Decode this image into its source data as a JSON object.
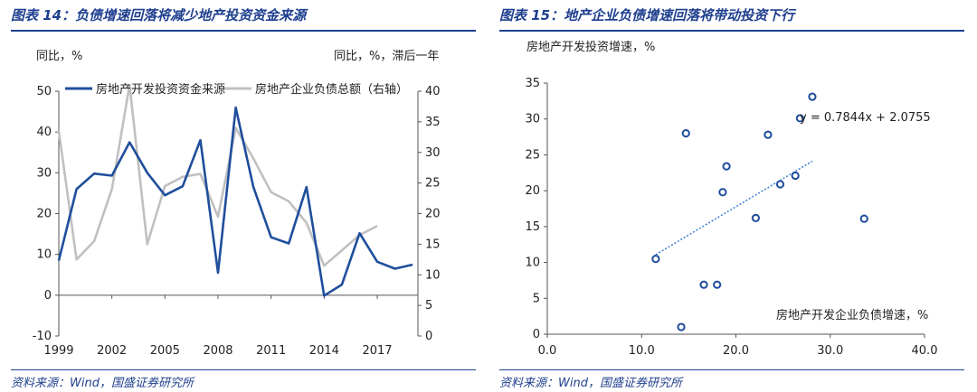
{
  "footer": "资料来源：Wind，国盛证券研究所",
  "colors": {
    "accent": "#1f3f8f",
    "series_navy": "#1f4e9c",
    "series_grey": "#c0c0c0",
    "trend": "#3b7fd0"
  },
  "chart_data": [
    {
      "type": "line",
      "title": "图表 14：负债增速回落将减少地产投资资金来源",
      "ylabel": "同比，%",
      "y2label": "同比，%，滞后一年",
      "x_tick_labels": [
        "1999",
        "2002",
        "2005",
        "2008",
        "2011",
        "2014",
        "2017"
      ],
      "ylim": [
        -10,
        50
      ],
      "yticks": [
        -10,
        0,
        10,
        20,
        30,
        40,
        50
      ],
      "y2lim": [
        0,
        40
      ],
      "y2ticks": [
        0,
        5,
        10,
        15,
        20,
        25,
        30,
        35,
        40
      ],
      "xlim": [
        1999,
        2019.3
      ],
      "legend_position": "top",
      "series": [
        {
          "name": "房地产开发投资资金来源",
          "axis": "left",
          "color": "#1f4e9c",
          "x": [
            1999,
            2000,
            2001,
            2002,
            2003,
            2004,
            2005,
            2006,
            2007,
            2008,
            2009,
            2010,
            2011,
            2012,
            2013,
            2014,
            2015,
            2016,
            2017,
            2018,
            2019
          ],
          "values": [
            8.5,
            26,
            29.8,
            29.3,
            37.5,
            30,
            24.5,
            26.7,
            38,
            5.5,
            46,
            26.5,
            14.2,
            12.7,
            26.5,
            -0.1,
            2.6,
            15.2,
            8.2,
            6.5,
            7.5
          ]
        },
        {
          "name": "房地产企业负债总额（右轴）",
          "axis": "right",
          "color": "#c0c0c0",
          "x": [
            1999,
            2000,
            2001,
            2002,
            2003,
            2004,
            2005,
            2006,
            2007,
            2008,
            2009,
            2010,
            2011,
            2012,
            2013,
            2014,
            2015,
            2016,
            2017
          ],
          "values": [
            33.5,
            12.5,
            15.5,
            24,
            41,
            15,
            24.5,
            26,
            26.5,
            19.5,
            34,
            29,
            23.5,
            22,
            18.5,
            11.5,
            14,
            16.5,
            18
          ]
        }
      ]
    },
    {
      "type": "scatter",
      "title": "图表 15：地产企业负债增速回落将带动投资下行",
      "ylabel": "房地产开发投资增速，%",
      "xlabel": "房地产开发企业负债增速，%",
      "xlim": [
        0,
        40
      ],
      "xticks": [
        "0.0",
        "10.0",
        "20.0",
        "30.0",
        "40.0"
      ],
      "ylim": [
        0,
        35
      ],
      "yticks": [
        0,
        5,
        10,
        15,
        20,
        25,
        30,
        35
      ],
      "points": [
        {
          "x": 11.5,
          "y": 10.5
        },
        {
          "x": 14.2,
          "y": 1.0
        },
        {
          "x": 14.7,
          "y": 28.0
        },
        {
          "x": 16.6,
          "y": 6.9
        },
        {
          "x": 18.0,
          "y": 6.9
        },
        {
          "x": 18.6,
          "y": 19.8
        },
        {
          "x": 19.0,
          "y": 23.4
        },
        {
          "x": 22.1,
          "y": 16.2
        },
        {
          "x": 23.4,
          "y": 27.8
        },
        {
          "x": 24.7,
          "y": 20.9
        },
        {
          "x": 26.3,
          "y": 22.1
        },
        {
          "x": 26.8,
          "y": 30.1
        },
        {
          "x": 28.1,
          "y": 33.1
        },
        {
          "x": 33.6,
          "y": 16.1
        }
      ],
      "trendline": {
        "label": "y = 0.7844x + 2.0755",
        "slope": 0.7844,
        "intercept": 2.0755,
        "x_range": [
          11.5,
          28.1
        ]
      }
    }
  ]
}
